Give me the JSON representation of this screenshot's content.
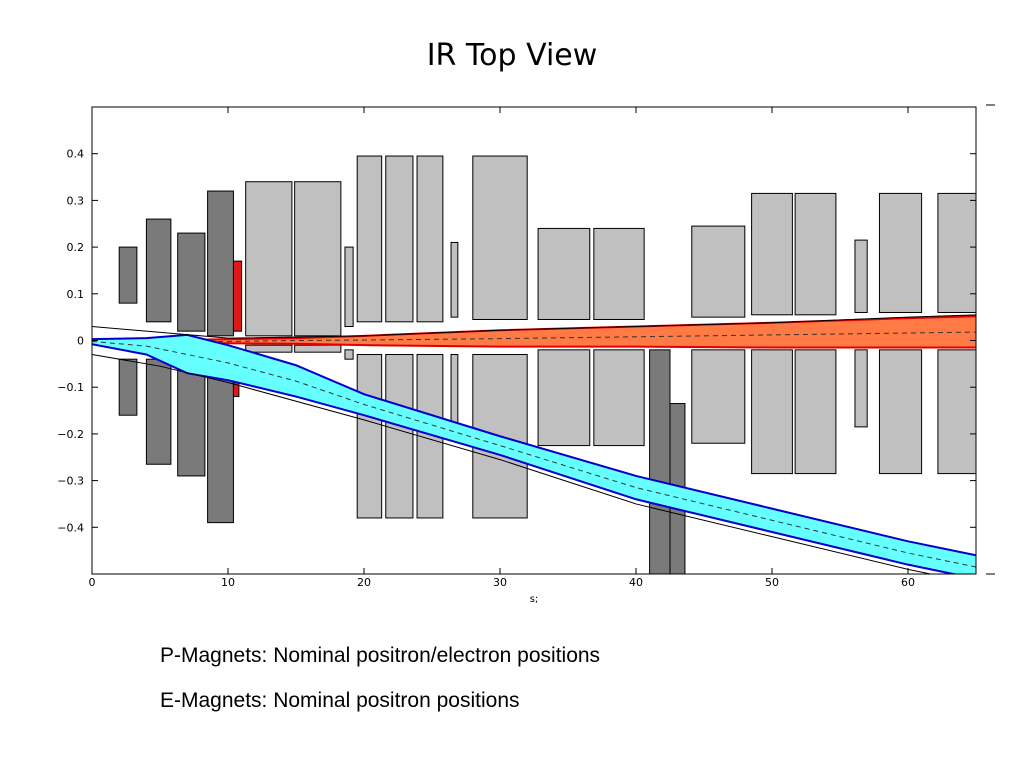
{
  "slide": {
    "title": "IR Top View",
    "captions": [
      "P-Magnets: Nominal positron/electron  positions",
      "E-Magnets: Nominal positron positions"
    ]
  },
  "chart_data": {
    "type": "area",
    "title": "",
    "xlabel": "s;",
    "ylabel": "",
    "xlim": [
      0,
      65
    ],
    "ylim": [
      -0.5,
      0.5
    ],
    "xticks": [
      0,
      10,
      20,
      30,
      40,
      50,
      60
    ],
    "yticks": [
      -0.4,
      -0.3,
      -0.2,
      -0.1,
      0,
      0.1,
      0.2,
      0.3,
      0.4
    ],
    "ytick_labels": [
      "−0.4",
      "−0.3",
      "−0.2",
      "−0.1",
      "0",
      "0.1",
      "0.2",
      "0.3",
      "0.4"
    ],
    "grid": false,
    "colors": {
      "magnet_light": "#c0c0c0",
      "magnet_dark": "#7a7a7a",
      "magnet_red": "#e01818",
      "beam_positron": "#ff7a45",
      "beam_positron_edge": "#e00000",
      "beam_electron": "#66ffff",
      "beam_electron_edge": "#0000cc"
    },
    "magnets": [
      {
        "x0": 2.0,
        "x1": 3.3,
        "y0": 0.08,
        "y1": 0.2,
        "shade": "dark"
      },
      {
        "x0": 2.0,
        "x1": 3.3,
        "y0": -0.16,
        "y1": -0.04,
        "shade": "dark"
      },
      {
        "x0": 4.0,
        "x1": 5.8,
        "y0": 0.04,
        "y1": 0.26,
        "shade": "dark"
      },
      {
        "x0": 4.0,
        "x1": 5.8,
        "y0": -0.265,
        "y1": -0.04,
        "shade": "dark"
      },
      {
        "x0": 6.3,
        "x1": 8.3,
        "y0": 0.02,
        "y1": 0.23,
        "shade": "dark"
      },
      {
        "x0": 6.3,
        "x1": 8.3,
        "y0": -0.29,
        "y1": -0.06,
        "shade": "dark"
      },
      {
        "x0": 8.5,
        "x1": 10.4,
        "y0": 0.01,
        "y1": 0.32,
        "shade": "dark"
      },
      {
        "x0": 8.5,
        "x1": 10.4,
        "y0": -0.39,
        "y1": -0.08,
        "shade": "dark"
      },
      {
        "x0": 10.4,
        "x1": 11.0,
        "y0": 0.02,
        "y1": 0.17,
        "shade": "red"
      },
      {
        "x0": 10.4,
        "x1": 10.8,
        "y0": -0.12,
        "y1": -0.09,
        "shade": "red"
      },
      {
        "x0": 11.3,
        "x1": 14.7,
        "y0": 0.01,
        "y1": 0.34,
        "shade": "light"
      },
      {
        "x0": 11.3,
        "x1": 14.7,
        "y0": -0.025,
        "y1": -0.01,
        "shade": "light"
      },
      {
        "x0": 14.9,
        "x1": 18.3,
        "y0": 0.01,
        "y1": 0.34,
        "shade": "light"
      },
      {
        "x0": 14.9,
        "x1": 18.3,
        "y0": -0.025,
        "y1": -0.01,
        "shade": "light"
      },
      {
        "x0": 18.6,
        "x1": 19.2,
        "y0": 0.03,
        "y1": 0.2,
        "shade": "light"
      },
      {
        "x0": 18.6,
        "x1": 19.2,
        "y0": -0.04,
        "y1": -0.02,
        "shade": "light"
      },
      {
        "x0": 19.5,
        "x1": 21.3,
        "y0": 0.04,
        "y1": 0.395,
        "shade": "light"
      },
      {
        "x0": 19.5,
        "x1": 21.3,
        "y0": -0.38,
        "y1": -0.03,
        "shade": "light"
      },
      {
        "x0": 21.6,
        "x1": 23.6,
        "y0": 0.04,
        "y1": 0.395,
        "shade": "light"
      },
      {
        "x0": 21.6,
        "x1": 23.6,
        "y0": -0.38,
        "y1": -0.03,
        "shade": "light"
      },
      {
        "x0": 23.9,
        "x1": 25.8,
        "y0": 0.04,
        "y1": 0.395,
        "shade": "light"
      },
      {
        "x0": 23.9,
        "x1": 25.8,
        "y0": -0.38,
        "y1": -0.03,
        "shade": "light"
      },
      {
        "x0": 26.4,
        "x1": 26.9,
        "y0": 0.05,
        "y1": 0.21,
        "shade": "light"
      },
      {
        "x0": 26.4,
        "x1": 26.9,
        "y0": -0.19,
        "y1": -0.03,
        "shade": "light"
      },
      {
        "x0": 28.0,
        "x1": 32.0,
        "y0": 0.045,
        "y1": 0.395,
        "shade": "light"
      },
      {
        "x0": 28.0,
        "x1": 32.0,
        "y0": -0.38,
        "y1": -0.03,
        "shade": "light"
      },
      {
        "x0": 32.8,
        "x1": 36.6,
        "y0": 0.045,
        "y1": 0.24,
        "shade": "light"
      },
      {
        "x0": 32.8,
        "x1": 36.6,
        "y0": -0.225,
        "y1": -0.02,
        "shade": "light"
      },
      {
        "x0": 36.9,
        "x1": 40.6,
        "y0": 0.045,
        "y1": 0.24,
        "shade": "light"
      },
      {
        "x0": 36.9,
        "x1": 40.6,
        "y0": -0.225,
        "y1": -0.02,
        "shade": "light"
      },
      {
        "x0": 41.0,
        "x1": 42.5,
        "y0": -0.5,
        "y1": -0.02,
        "shade": "dark"
      },
      {
        "x0": 42.5,
        "x1": 43.6,
        "y0": -0.5,
        "y1": -0.135,
        "shade": "dark"
      },
      {
        "x0": 44.1,
        "x1": 48.0,
        "y0": 0.05,
        "y1": 0.245,
        "shade": "light"
      },
      {
        "x0": 44.1,
        "x1": 48.0,
        "y0": -0.22,
        "y1": -0.02,
        "shade": "light"
      },
      {
        "x0": 48.5,
        "x1": 51.5,
        "y0": 0.055,
        "y1": 0.315,
        "shade": "light"
      },
      {
        "x0": 48.5,
        "x1": 51.5,
        "y0": -0.285,
        "y1": -0.02,
        "shade": "light"
      },
      {
        "x0": 51.7,
        "x1": 54.7,
        "y0": 0.055,
        "y1": 0.315,
        "shade": "light"
      },
      {
        "x0": 51.7,
        "x1": 54.7,
        "y0": -0.285,
        "y1": -0.02,
        "shade": "light"
      },
      {
        "x0": 56.1,
        "x1": 57.0,
        "y0": 0.06,
        "y1": 0.215,
        "shade": "light"
      },
      {
        "x0": 56.1,
        "x1": 57.0,
        "y0": -0.185,
        "y1": -0.02,
        "shade": "light"
      },
      {
        "x0": 57.9,
        "x1": 61.0,
        "y0": 0.06,
        "y1": 0.315,
        "shade": "light"
      },
      {
        "x0": 57.9,
        "x1": 61.0,
        "y0": -0.285,
        "y1": -0.02,
        "shade": "light"
      },
      {
        "x0": 62.2,
        "x1": 65.0,
        "y0": 0.06,
        "y1": 0.315,
        "shade": "light"
      },
      {
        "x0": 62.2,
        "x1": 65.0,
        "y0": -0.285,
        "y1": -0.02,
        "shade": "light"
      }
    ],
    "positron_beam": {
      "x": [
        0,
        5,
        10,
        15,
        20,
        30,
        40,
        50,
        60,
        65
      ],
      "upper": [
        0.002,
        0.0,
        0.003,
        0.005,
        0.01,
        0.022,
        0.03,
        0.038,
        0.048,
        0.052
      ],
      "lower": [
        -0.008,
        -0.008,
        -0.006,
        -0.007,
        -0.01,
        -0.013,
        -0.013,
        -0.015,
        -0.015,
        -0.015
      ],
      "center": [
        -0.003,
        -0.004,
        -0.002,
        0.0,
        0.001,
        0.004,
        0.008,
        0.012,
        0.016,
        0.018
      ]
    },
    "electron_beam": {
      "x": [
        0,
        4,
        7,
        10,
        15,
        20,
        30,
        40,
        50,
        60,
        65
      ],
      "upper": [
        0.003,
        0.005,
        0.012,
        -0.01,
        -0.053,
        -0.115,
        -0.205,
        -0.29,
        -0.36,
        -0.43,
        -0.46
      ],
      "lower": [
        -0.008,
        -0.03,
        -0.07,
        -0.085,
        -0.12,
        -0.16,
        -0.245,
        -0.34,
        -0.41,
        -0.48,
        -0.51
      ],
      "center": [
        -0.002,
        -0.012,
        -0.03,
        -0.048,
        -0.087,
        -0.137,
        -0.225,
        -0.315,
        -0.385,
        -0.455,
        -0.485
      ]
    },
    "outline_top": {
      "x": [
        0,
        10,
        20,
        30,
        40,
        50,
        60,
        65
      ],
      "y": [
        0.03,
        0.005,
        0.01,
        0.022,
        0.03,
        0.038,
        0.05,
        0.055
      ]
    },
    "outline_bottom": {
      "x": [
        0,
        5,
        10,
        20,
        30,
        40,
        50,
        60,
        65
      ],
      "y": [
        -0.03,
        -0.055,
        -0.09,
        -0.17,
        -0.255,
        -0.35,
        -0.42,
        -0.49,
        -0.52
      ]
    }
  }
}
